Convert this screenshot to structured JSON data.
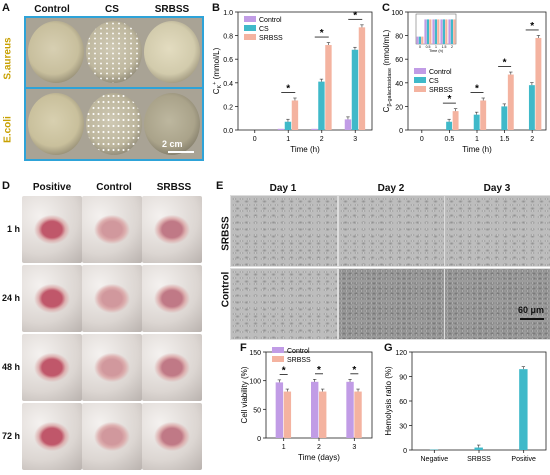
{
  "panels": {
    "A": {
      "label": "A",
      "columns": [
        "Control",
        "CS",
        "SRBSS"
      ],
      "rows": [
        "S.aureus",
        "E.coli"
      ],
      "scale_bar": "2 cm"
    },
    "B": {
      "label": "B",
      "legend": [
        "Control",
        "CS",
        "SRBSS"
      ]
    },
    "C": {
      "label": "C",
      "legend": [
        "Control",
        "CS",
        "SRBSS"
      ],
      "inset_xlabel": "Time (h)"
    },
    "D": {
      "label": "D",
      "columns": [
        "Positive",
        "Control",
        "SRBSS"
      ],
      "rows": [
        "1 h",
        "24 h",
        "48 h",
        "72 h"
      ]
    },
    "E": {
      "label": "E",
      "columns": [
        "Day 1",
        "Day 2",
        "Day 3"
      ],
      "rows": [
        "SRBSS",
        "Control"
      ],
      "scale_bar": "60 μm"
    },
    "F": {
      "label": "F",
      "legend": [
        "Control",
        "SRBSS"
      ]
    },
    "G": {
      "label": "G"
    }
  },
  "colors": {
    "control": "#c19ce6",
    "cs": "#3fb9c9",
    "srbss": "#f4b3a0"
  },
  "chart_data": [
    {
      "id": "B",
      "type": "bar",
      "categories": [
        "0",
        "1",
        "2",
        "3"
      ],
      "xlabel": "Time (h)",
      "ylabel": "C",
      "ylabel_sub": "K",
      "ylabel_sup": "+",
      "ylabel_unit": " (mmol/L)",
      "ylim": [
        0,
        1.0
      ],
      "yticks": [
        "0.0",
        "0.2",
        "0.4",
        "0.6",
        "0.8",
        "1.0"
      ],
      "series": [
        {
          "name": "Control",
          "values": [
            0.0,
            0.01,
            0.01,
            0.09
          ]
        },
        {
          "name": "CS",
          "values": [
            0.0,
            0.07,
            0.41,
            0.68
          ]
        },
        {
          "name": "SRBSS",
          "values": [
            0.0,
            0.25,
            0.72,
            0.87
          ]
        }
      ],
      "significance": [
        "",
        "*",
        "*",
        "*"
      ]
    },
    {
      "id": "C",
      "type": "bar",
      "categories": [
        "0",
        "0.5",
        "1",
        "1.5",
        "2"
      ],
      "xlabel": "Time (h)",
      "ylabel": "C",
      "ylabel_sub": "β-galactosidase",
      "ylabel_unit": " (nmol/mL)",
      "ylim": [
        0,
        100
      ],
      "yticks": [
        "0",
        "20",
        "40",
        "60",
        "80",
        "100"
      ],
      "series": [
        {
          "name": "Control",
          "values": [
            0,
            0,
            0,
            0,
            0
          ]
        },
        {
          "name": "CS",
          "values": [
            0,
            7,
            13,
            20,
            38
          ]
        },
        {
          "name": "SRBSS",
          "values": [
            0,
            16,
            25,
            47,
            78
          ]
        }
      ],
      "significance": [
        "",
        "*",
        "*",
        "*",
        "*"
      ]
    },
    {
      "id": "F",
      "type": "bar",
      "categories": [
        "1",
        "2",
        "3"
      ],
      "xlabel": "Time (days)",
      "ylabel": "Cell viability (%)",
      "ylim": [
        0,
        150
      ],
      "yticks": [
        "0",
        "50",
        "100",
        "150"
      ],
      "series": [
        {
          "name": "Control",
          "values": [
            97,
            98,
            98
          ]
        },
        {
          "name": "SRBSS",
          "values": [
            81,
            81,
            81
          ]
        }
      ],
      "significance": [
        "*",
        "*",
        "*"
      ]
    },
    {
      "id": "G",
      "type": "bar",
      "categories": [
        "Negative",
        "SRBSS",
        "Positive"
      ],
      "ylabel": "Hemolysis ratio (%)",
      "ylim": [
        0,
        120
      ],
      "yticks": [
        "0",
        "30",
        "60",
        "90",
        "120"
      ],
      "series": [
        {
          "values": [
            0.5,
            3,
            99
          ]
        }
      ]
    }
  ]
}
